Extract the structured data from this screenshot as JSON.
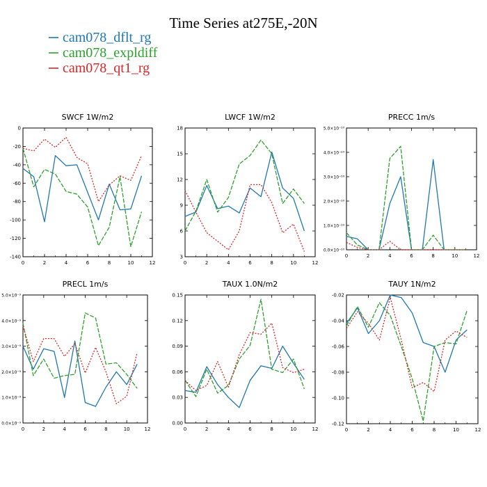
{
  "figure": {
    "title": "Time Series at275E,-20N",
    "legend": [
      {
        "name": "cam078_dflt_rg",
        "color": "#1f77b4",
        "style": "solid"
      },
      {
        "name": "cam078_expldiff",
        "color": "#2ca02c",
        "style": "dashed"
      },
      {
        "name": "cam078_qt1_rg",
        "color": "#d62728",
        "style": "dotted"
      }
    ]
  },
  "chart_data": [
    {
      "type": "line",
      "title": "SWCF   1W/m2",
      "xlim": [
        0,
        12
      ],
      "ylim": [
        -140,
        0
      ],
      "xticks": [
        "0",
        "2",
        "4",
        "6",
        "8",
        "10",
        "12"
      ],
      "yticks": [
        "-140",
        "-120",
        "-100",
        "-80",
        "-60",
        "-40",
        "-20",
        "0"
      ],
      "x": [
        0,
        1,
        2,
        3,
        4,
        5,
        6,
        7,
        8,
        9,
        10,
        11
      ],
      "series": [
        {
          "name": "cam078_dflt_rg",
          "values": [
            -44,
            -53,
            -102,
            -30,
            -41,
            -40,
            -70,
            -100,
            -61,
            -89,
            -88,
            -52
          ]
        },
        {
          "name": "cam078_expldiff",
          "values": [
            -22,
            -64,
            -45,
            -50,
            -69,
            -72,
            -86,
            -128,
            -108,
            -53,
            -129,
            -91
          ]
        },
        {
          "name": "cam078_qt1_rg",
          "values": [
            -22,
            -25,
            -12,
            -21,
            -10,
            -32,
            -39,
            -80,
            -62,
            -52,
            -57,
            -30
          ]
        }
      ]
    },
    {
      "type": "line",
      "title": "LWCF   1W/m2",
      "xlim": [
        0,
        12
      ],
      "ylim": [
        3,
        18
      ],
      "xticks": [
        "0",
        "2",
        "4",
        "6",
        "8",
        "10",
        "12"
      ],
      "yticks": [
        "3",
        "6",
        "9",
        "12",
        "15",
        "18"
      ],
      "x": [
        0,
        1,
        2,
        3,
        4,
        5,
        6,
        7,
        8,
        9,
        10,
        11
      ],
      "series": [
        {
          "name": "cam078_dflt_rg",
          "values": [
            7.7,
            8.2,
            11.3,
            8.6,
            8.9,
            8.1,
            11.0,
            10.0,
            15.2,
            11.0,
            9.8,
            6.0
          ]
        },
        {
          "name": "cam078_expldiff",
          "values": [
            6.0,
            8.3,
            12.0,
            8.2,
            9.9,
            13.8,
            14.8,
            16.6,
            15.0,
            9.2,
            10.9,
            9.2
          ]
        },
        {
          "name": "cam078_qt1_rg",
          "values": [
            10.7,
            8.2,
            5.8,
            4.8,
            3.8,
            6.0,
            11.4,
            11.4,
            9.3,
            5.8,
            6.8,
            3.6
          ]
        }
      ]
    },
    {
      "type": "line",
      "title": "PRECC   1m/s",
      "xlim": [
        0,
        12
      ],
      "ylim": [
        0,
        5e-10
      ],
      "xticks": [
        "0",
        "2",
        "4",
        "6",
        "8",
        "10",
        "12"
      ],
      "yticks": [
        "0.0×10⁻¹⁰",
        "1.0×10⁻¹⁰",
        "2.0×10⁻¹⁰",
        "3.0×10⁻¹⁰",
        "4.0×10⁻¹⁰",
        "5.0×10⁻¹⁰"
      ],
      "x": [
        0,
        1,
        2,
        3,
        4,
        5,
        6,
        7,
        8,
        9,
        10,
        11
      ],
      "series": [
        {
          "name": "cam078_dflt_rg",
          "values": [
            5.5e-11,
            4.5e-11,
            0,
            0,
            1.9e-10,
            3e-10,
            0,
            0,
            3.7e-10,
            0,
            0,
            0
          ]
        },
        {
          "name": "cam078_expldiff",
          "values": [
            7e-11,
            2e-11,
            0,
            0,
            3.75e-10,
            4.25e-10,
            0,
            0,
            6e-11,
            0,
            0,
            0
          ]
        },
        {
          "name": "cam078_qt1_rg",
          "values": [
            3e-11,
            1e-11,
            0,
            0,
            3.5e-11,
            0,
            0,
            0,
            0,
            0,
            0,
            0
          ]
        }
      ]
    },
    {
      "type": "line",
      "title": "PRECL   1m/s",
      "xlim": [
        0,
        12
      ],
      "ylim": [
        0,
        5e-09
      ],
      "xticks": [
        "0",
        "2",
        "4",
        "6",
        "8",
        "10",
        "12"
      ],
      "yticks": [
        "0.0×10⁻⁹",
        "1.0×10⁻⁹",
        "2.0×10⁻⁹",
        "3.0×10⁻⁹",
        "4.0×10⁻⁹",
        "5.0×10⁻⁹"
      ],
      "x": [
        0,
        1,
        2,
        3,
        4,
        5,
        6,
        7,
        8,
        9,
        10,
        11
      ],
      "series": [
        {
          "name": "cam078_dflt_rg",
          "values": [
            3e-09,
            2.1e-09,
            2.9e-09,
            2.8e-09,
            1e-09,
            3.2e-09,
            8e-10,
            6.5e-10,
            1.4e-09,
            2e-09,
            1.5e-09,
            2.3e-09
          ]
        },
        {
          "name": "cam078_expldiff",
          "values": [
            3.9e-09,
            1.85e-09,
            2.5e-09,
            1.75e-09,
            1.85e-09,
            1.9e-09,
            4.3e-09,
            4.1e-09,
            2.3e-09,
            2.35e-09,
            1.9e-09,
            1.35e-09
          ]
        },
        {
          "name": "cam078_qt1_rg",
          "values": [
            3.8e-09,
            2.4e-09,
            3.3e-09,
            3.3e-09,
            2.6e-09,
            3.1e-09,
            1.95e-09,
            2.95e-09,
            2e-09,
            7.5e-10,
            1.05e-09,
            2.75e-09
          ]
        }
      ]
    },
    {
      "type": "line",
      "title": "TAUX   1.0N/m2",
      "xlim": [
        0,
        12
      ],
      "ylim": [
        0,
        0.15
      ],
      "xticks": [
        "0",
        "2",
        "4",
        "6",
        "8",
        "10",
        "12"
      ],
      "yticks": [
        "0.00",
        "0.03",
        "0.06",
        "0.09",
        "0.12",
        "0.15"
      ],
      "x": [
        0,
        1,
        2,
        3,
        4,
        5,
        6,
        7,
        8,
        9,
        10,
        11
      ],
      "series": [
        {
          "name": "cam078_dflt_rg",
          "values": [
            0.038,
            0.036,
            0.066,
            0.045,
            0.03,
            0.018,
            0.05,
            0.067,
            0.064,
            0.09,
            0.07,
            0.051
          ]
        },
        {
          "name": "cam078_expldiff",
          "values": [
            0.05,
            0.031,
            0.063,
            0.035,
            0.044,
            0.075,
            0.091,
            0.145,
            0.063,
            0.059,
            0.075,
            0.04
          ]
        },
        {
          "name": "cam078_qt1_rg",
          "values": [
            0.05,
            0.038,
            0.044,
            0.072,
            0.042,
            0.08,
            0.106,
            0.104,
            0.117,
            0.065,
            0.059,
            0.063
          ]
        }
      ]
    },
    {
      "type": "line",
      "title": "TAUY   1N/m2",
      "xlim": [
        0,
        12
      ],
      "ylim": [
        -0.12,
        -0.02
      ],
      "xticks": [
        "0",
        "2",
        "4",
        "6",
        "8",
        "10",
        "12"
      ],
      "yticks": [
        "-0.12",
        "-0.10",
        "-0.08",
        "-0.06",
        "-0.04",
        "-0.02"
      ],
      "x": [
        0,
        1,
        2,
        3,
        4,
        5,
        6,
        7,
        8,
        9,
        10,
        11
      ],
      "series": [
        {
          "name": "cam078_dflt_rg",
          "values": [
            -0.042,
            -0.03,
            -0.05,
            -0.04,
            -0.02,
            -0.022,
            -0.034,
            -0.057,
            -0.06,
            -0.08,
            -0.055,
            -0.047
          ]
        },
        {
          "name": "cam078_expldiff",
          "values": [
            -0.044,
            -0.029,
            -0.045,
            -0.026,
            -0.036,
            -0.06,
            -0.085,
            -0.118,
            -0.06,
            -0.057,
            -0.058,
            -0.032
          ]
        },
        {
          "name": "cam078_qt1_rg",
          "values": [
            -0.046,
            -0.033,
            -0.042,
            -0.055,
            -0.022,
            -0.055,
            -0.092,
            -0.088,
            -0.095,
            -0.055,
            -0.048,
            -0.053
          ]
        }
      ]
    }
  ]
}
